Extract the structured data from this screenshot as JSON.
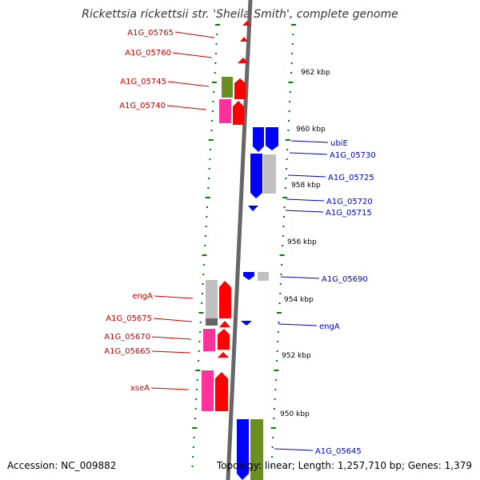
{
  "title": "Rickettsia rickettsii str. 'Sheila Smith', complete genome",
  "footer": {
    "accession": "Accession: NC_009882",
    "topology": "Topology: linear; Length: 1,257,710 bp; Genes: 1,379"
  },
  "kbp_labels": [
    "962 kbp",
    "960 kbp",
    "958 kbp",
    "956 kbp",
    "954 kbp",
    "952 kbp",
    "950 kbp"
  ],
  "left_labels": [
    "A1G_05765",
    "A1G_05760",
    "A1G_05745",
    "A1G_05740",
    "engA",
    "A1G_05675",
    "A1G_05670",
    "A1G_05665",
    "xseA"
  ],
  "right_labels": [
    "ubiE",
    "A1G_05730",
    "A1G_05725",
    "A1G_05720",
    "A1G_05715",
    "A1G_05690",
    "engA",
    "A1G_05645"
  ],
  "colors": {
    "reverse_cds": "#ff0000",
    "forward_cds": "#0000ff",
    "pink": "#ff3399",
    "olive": "#6b8e23",
    "gray": "#c0c0c0",
    "tick": "#008000",
    "left_label": "#cc0000",
    "right_label": "#0000cc"
  }
}
